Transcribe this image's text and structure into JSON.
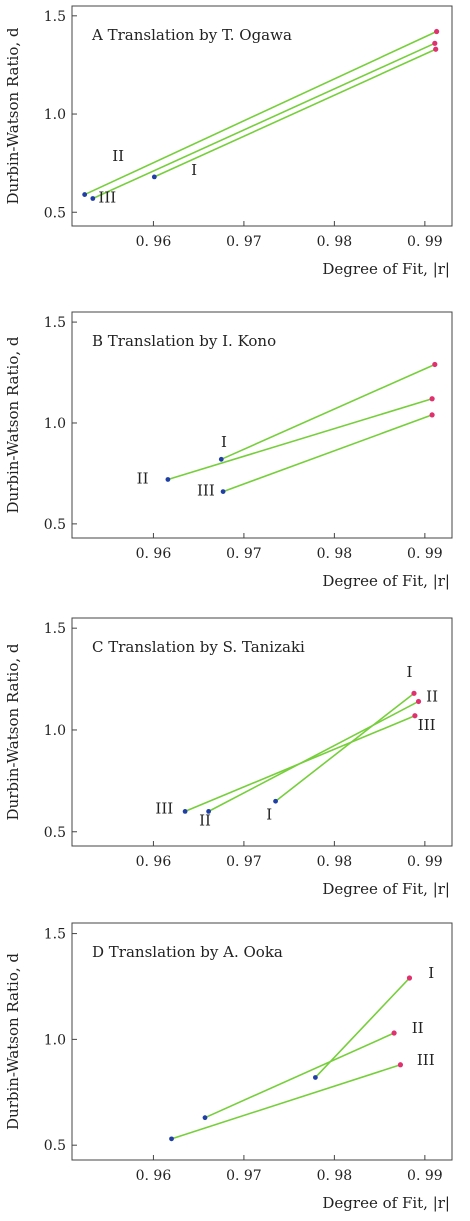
{
  "colors": {
    "line": "#76cf3a",
    "start_point": "#1f3fa6",
    "end_point": "#e0306e"
  },
  "chart_data": [
    {
      "type": "line",
      "title": "A Translation by T. Ogawa",
      "xlabel": "Degree of Fit, |r|",
      "ylabel": "Durbin-Watson Ratio, d",
      "xlim": [
        0.951,
        0.993
      ],
      "ylim": [
        0.43,
        1.55
      ],
      "xticks": [
        "0. 96",
        "0. 97",
        "0. 98",
        "0. 99"
      ],
      "yticks": [
        "0.5",
        "1.0",
        "1.5"
      ],
      "grid": false,
      "series": [
        {
          "name": "I",
          "x": [
            0.9601,
            0.9912
          ],
          "y": [
            0.68,
            1.33
          ]
        },
        {
          "name": "II",
          "x": [
            0.9524,
            0.9913
          ],
          "y": [
            0.59,
            1.42
          ]
        },
        {
          "name": "III",
          "x": [
            0.9533,
            0.9911
          ],
          "y": [
            0.57,
            1.36
          ]
        }
      ],
      "labels": [
        {
          "text": "II",
          "x": 0.9561,
          "y": 0.76
        },
        {
          "text": "I",
          "x": 0.9645,
          "y": 0.69
        },
        {
          "text": "III",
          "x": 0.9549,
          "y": 0.55
        }
      ]
    },
    {
      "type": "line",
      "title": "B Translation by I. Kono",
      "xlabel": "Degree of Fit, |r|",
      "ylabel": "Durbin-Watson Ratio, d",
      "xlim": [
        0.951,
        0.993
      ],
      "ylim": [
        0.43,
        1.55
      ],
      "xticks": [
        "0. 96",
        "0. 97",
        "0. 98",
        "0. 99"
      ],
      "yticks": [
        "0.5",
        "1.0",
        "1.5"
      ],
      "grid": false,
      "series": [
        {
          "name": "I",
          "x": [
            0.9675,
            0.9911
          ],
          "y": [
            0.82,
            1.29
          ]
        },
        {
          "name": "II",
          "x": [
            0.9616,
            0.9908
          ],
          "y": [
            0.72,
            1.12
          ]
        },
        {
          "name": "III",
          "x": [
            0.9677,
            0.9908
          ],
          "y": [
            0.66,
            1.04
          ]
        }
      ],
      "labels": [
        {
          "text": "I",
          "x": 0.9678,
          "y": 0.88
        },
        {
          "text": "II",
          "x": 0.9588,
          "y": 0.7
        },
        {
          "text": "III",
          "x": 0.9658,
          "y": 0.64
        }
      ]
    },
    {
      "type": "line",
      "title": "C Translation by S. Tanizaki",
      "xlabel": "Degree of Fit, |r|",
      "ylabel": "Durbin-Watson Ratio, d",
      "xlim": [
        0.951,
        0.993
      ],
      "ylim": [
        0.43,
        1.55
      ],
      "xticks": [
        "0. 96",
        "0. 97",
        "0. 98",
        "0. 99"
      ],
      "yticks": [
        "0.5",
        "1.0",
        "1.5"
      ],
      "grid": false,
      "series": [
        {
          "name": "I",
          "x": [
            0.9735,
            0.9888
          ],
          "y": [
            0.65,
            1.18
          ]
        },
        {
          "name": "II",
          "x": [
            0.9661,
            0.9893
          ],
          "y": [
            0.6,
            1.14
          ]
        },
        {
          "name": "III",
          "x": [
            0.9635,
            0.9889
          ],
          "y": [
            0.6,
            1.07
          ]
        }
      ],
      "labels": [
        {
          "text": "I",
          "x": 0.9883,
          "y": 1.26
        },
        {
          "text": "II",
          "x": 0.9908,
          "y": 1.14
        },
        {
          "text": "III",
          "x": 0.9902,
          "y": 1.0
        },
        {
          "text": "III",
          "x": 0.9612,
          "y": 0.59
        },
        {
          "text": "II",
          "x": 0.9657,
          "y": 0.53
        },
        {
          "text": "I",
          "x": 0.9728,
          "y": 0.56
        }
      ]
    },
    {
      "type": "line",
      "title": "D Translation by A. Ooka",
      "xlabel": "Degree of Fit, |r|",
      "ylabel": "Durbin-Watson Ratio, d",
      "xlim": [
        0.951,
        0.993
      ],
      "ylim": [
        0.43,
        1.55
      ],
      "xticks": [
        "0. 96",
        "0. 97",
        "0. 98",
        "0. 99"
      ],
      "yticks": [
        "0.5",
        "1.0",
        "1.5"
      ],
      "grid": false,
      "series": [
        {
          "name": "I",
          "x": [
            0.9779,
            0.9883
          ],
          "y": [
            0.82,
            1.29
          ]
        },
        {
          "name": "II",
          "x": [
            0.9657,
            0.9866
          ],
          "y": [
            0.63,
            1.03
          ]
        },
        {
          "name": "III",
          "x": [
            0.962,
            0.9873
          ],
          "y": [
            0.53,
            0.88
          ]
        }
      ],
      "labels": [
        {
          "text": "I",
          "x": 0.9907,
          "y": 1.29
        },
        {
          "text": "II",
          "x": 0.9892,
          "y": 1.03
        },
        {
          "text": "III",
          "x": 0.9901,
          "y": 0.88
        }
      ]
    }
  ]
}
